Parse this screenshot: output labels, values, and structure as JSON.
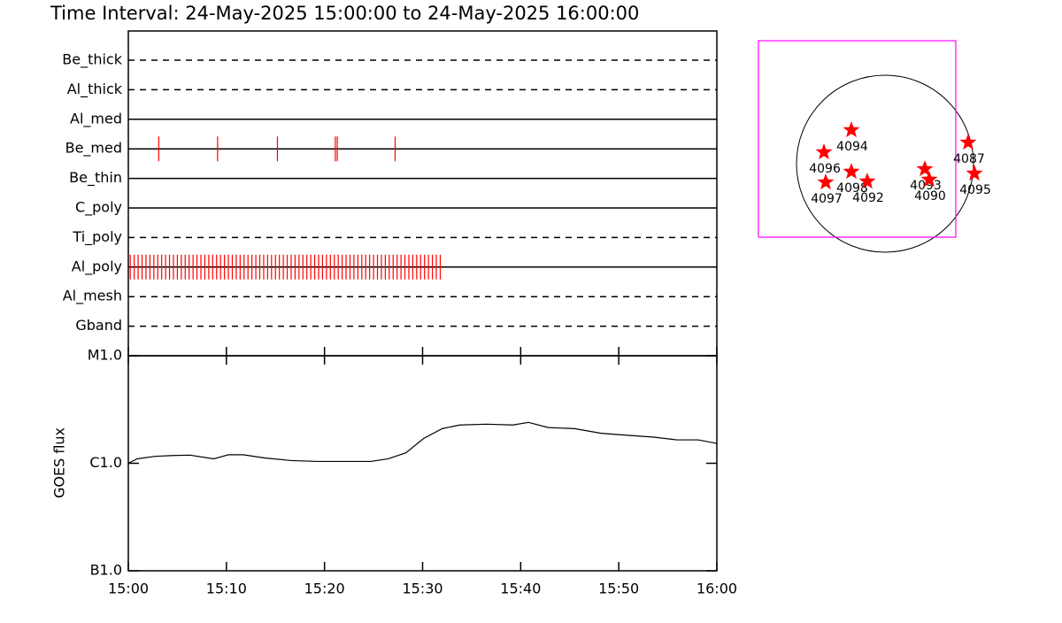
{
  "title": "Time Interval: 24-May-2025 15:00:00 to 24-May-2025 16:00:00",
  "chart_data": [
    {
      "type": "timeline",
      "categories": [
        "Be_thick",
        "Al_thick",
        "Al_med",
        "Be_med",
        "Be_thin",
        "C_poly",
        "Ti_poly",
        "Al_poly",
        "Al_mesh",
        "Gband"
      ],
      "line_styles": [
        "dashed",
        "dashed",
        "solid",
        "solid",
        "solid",
        "solid",
        "dashed",
        "solid",
        "dashed",
        "dashed"
      ],
      "events": [
        [],
        [],
        [],
        [
          3.1,
          9.1,
          15.2,
          21.1,
          21.3,
          27.2
        ],
        [],
        [],
        [],
        [
          0.2,
          0.6,
          1.0,
          1.4,
          1.8,
          2.2,
          2.6,
          3.0,
          3.4,
          3.8,
          4.2,
          4.6,
          5.0,
          5.4,
          5.8,
          6.2,
          6.6,
          7.0,
          7.4,
          7.8,
          8.2,
          8.6,
          9.0,
          9.4,
          9.8,
          10.2,
          10.6,
          11.0,
          11.4,
          11.8,
          12.2,
          12.6,
          13.0,
          13.4,
          13.8,
          14.2,
          14.6,
          15.0,
          15.4,
          15.8,
          16.2,
          16.6,
          17.0,
          17.4,
          17.8,
          18.2,
          18.6,
          19.0,
          19.4,
          19.8,
          20.2,
          20.6,
          21.0,
          21.4,
          21.8,
          22.2,
          22.6,
          23.0,
          23.4,
          23.8,
          24.2,
          24.6,
          25.0,
          25.4,
          25.8,
          26.2,
          26.6,
          27.0,
          27.4,
          27.8,
          28.2,
          28.6,
          29.0,
          29.4,
          29.8,
          30.2,
          30.6,
          31.0,
          31.4,
          31.8
        ],
        [],
        []
      ],
      "color": "#ff0000",
      "xlim": [
        0,
        60
      ]
    },
    {
      "type": "line",
      "ylabel": "GOES flux",
      "log_scale": true,
      "x": [
        0,
        0.9,
        2.7,
        4.5,
        6.3,
        8.7,
        10.2,
        11.7,
        13.9,
        16.6,
        19.3,
        22.0,
        24.7,
        26.5,
        28.3,
        30.1,
        32.0,
        33.8,
        36.5,
        39.2,
        40.8,
        42.8,
        45.5,
        48.2,
        50.9,
        53.6,
        55.9,
        58.1,
        60
      ],
      "values": [
        1e-06,
        1.1e-06,
        1.16e-06,
        1.18e-06,
        1.19e-06,
        1.1e-06,
        1.2e-06,
        1.2e-06,
        1.12e-06,
        1.06e-06,
        1.04e-06,
        1.04e-06,
        1.04e-06,
        1.1e-06,
        1.25e-06,
        1.7e-06,
        2.1e-06,
        2.27e-06,
        2.31e-06,
        2.27e-06,
        2.4e-06,
        2.15e-06,
        2.1e-06,
        1.9e-06,
        1.82e-06,
        1.75e-06,
        1.65e-06,
        1.65e-06,
        1.53e-06
      ],
      "color": "#000000",
      "xlim": [
        0,
        60
      ],
      "xticks": [
        {
          "value": 0,
          "label": "15:00"
        },
        {
          "value": 10,
          "label": "15:10"
        },
        {
          "value": 20,
          "label": "15:20"
        },
        {
          "value": 30,
          "label": "15:30"
        },
        {
          "value": 40,
          "label": "15:40"
        },
        {
          "value": 50,
          "label": "15:50"
        },
        {
          "value": 60,
          "label": "16:00"
        }
      ],
      "ylim": [
        1e-07,
        1e-05
      ],
      "yticks": [
        {
          "value": 1e-07,
          "label": "B1.0"
        },
        {
          "value": 1e-06,
          "label": "C1.0"
        },
        {
          "value": 1e-05,
          "label": "M1.0"
        }
      ]
    },
    {
      "type": "map",
      "labels": [
        "4094",
        "4096",
        "4098",
        "4092",
        "4097",
        "4093",
        "4090",
        "4087",
        "4095"
      ],
      "x": [
        -365,
        -662,
        -365,
        -192,
        -643,
        432,
        480,
        902,
        970
      ],
      "y": [
        365,
        125,
        -86,
        -192,
        -202,
        -58,
        -173,
        230,
        -106
      ],
      "color": "#ff0000",
      "fov": {
        "xlim": [
          -1373,
          768
        ],
        "ylim": [
          -797,
          1334
        ],
        "color": "#ff00ff"
      }
    }
  ]
}
